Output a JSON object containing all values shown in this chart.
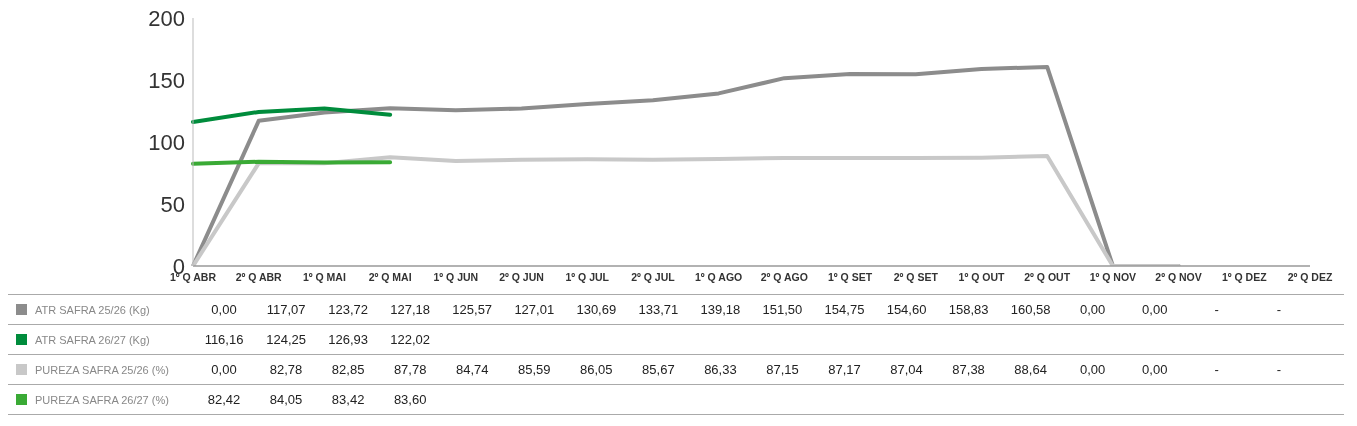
{
  "chart_data": {
    "type": "line",
    "categories": [
      "1º Q ABR",
      "2º Q ABR",
      "1º Q MAI",
      "2º Q MAI",
      "1º Q JUN",
      "2º Q JUN",
      "1º Q JUL",
      "2º Q JUL",
      "1º Q AGO",
      "2º Q AGO",
      "1º Q SET",
      "2º Q SET",
      "1º Q OUT",
      "2º Q OUT",
      "1º Q NOV",
      "2º Q NOV",
      "1º Q DEZ",
      "2º Q DEZ"
    ],
    "series": [
      {
        "name": "ATR SAFRA 25/26 (Kg)",
        "color": "#8c8c8c",
        "values": [
          0,
          117.07,
          123.72,
          127.18,
          125.57,
          127.01,
          130.69,
          133.71,
          139.18,
          151.5,
          154.75,
          154.6,
          158.83,
          160.58,
          0,
          0,
          null,
          null
        ],
        "value_labels": [
          "0,00",
          "117,07",
          "123,72",
          "127,18",
          "125,57",
          "127,01",
          "130,69",
          "133,71",
          "139,18",
          "151,50",
          "154,75",
          "154,60",
          "158,83",
          "160,58",
          "0,00",
          "0,00",
          "-",
          "-"
        ]
      },
      {
        "name": "ATR SAFRA 26/27 (Kg)",
        "color": "#008c3c",
        "values": [
          116.16,
          124.25,
          126.93,
          122.02,
          null,
          null,
          null,
          null,
          null,
          null,
          null,
          null,
          null,
          null,
          null,
          null,
          null,
          null
        ],
        "value_labels": [
          "116,16",
          "124,25",
          "126,93",
          "122,02",
          null,
          null,
          null,
          null,
          null,
          null,
          null,
          null,
          null,
          null,
          null,
          null,
          null,
          null
        ]
      },
      {
        "name": "PUREZA SAFRA 25/26 (%)",
        "color": "#c8c8c8",
        "values": [
          0,
          82.78,
          82.85,
          87.78,
          84.74,
          85.59,
          86.05,
          85.67,
          86.33,
          87.15,
          87.17,
          87.04,
          87.38,
          88.64,
          0,
          0,
          null,
          null
        ],
        "value_labels": [
          "0,00",
          "82,78",
          "82,85",
          "87,78",
          "84,74",
          "85,59",
          "86,05",
          "85,67",
          "86,33",
          "87,15",
          "87,17",
          "87,04",
          "87,38",
          "88,64",
          "0,00",
          "0,00",
          "-",
          "-"
        ]
      },
      {
        "name": "PUREZA SAFRA 26/27 (%)",
        "color": "#3aaa35",
        "values": [
          82.42,
          84.05,
          83.42,
          83.6,
          null,
          null,
          null,
          null,
          null,
          null,
          null,
          null,
          null,
          null,
          null,
          null,
          null,
          null
        ],
        "value_labels": [
          "82,42",
          "84,05",
          "83,42",
          "83,60",
          null,
          null,
          null,
          null,
          null,
          null,
          null,
          null,
          null,
          null,
          null,
          null,
          null,
          null
        ]
      }
    ],
    "ylim": [
      0,
      200
    ],
    "yticks": [
      0,
      50,
      100,
      150,
      200
    ],
    "grid": false,
    "legend": "bottom",
    "marker": "none",
    "line_style": "solid"
  }
}
